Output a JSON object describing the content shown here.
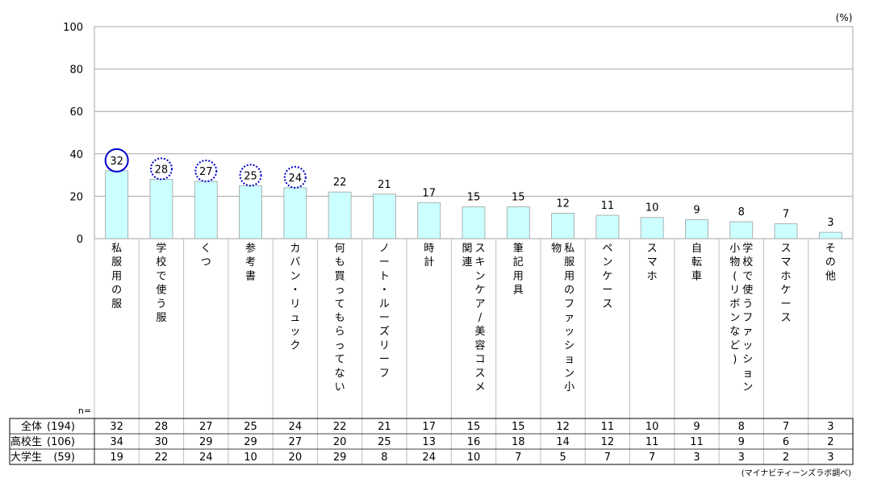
{
  "chart_data": {
    "type": "bar",
    "unit_label": "(%)",
    "ylim": [
      0,
      100
    ],
    "yticks": [
      0,
      20,
      40,
      60,
      80,
      100
    ],
    "grid": true,
    "categories": [
      "私服用の服",
      "学校で使う服",
      "くつ",
      "参考書",
      "カバン・リュック",
      "何も買ってもらってない",
      "ノート・ルーズリーフ",
      "時計",
      "スキンケア/美容コスメ関連",
      "筆記用具",
      "私服用のファッション小物",
      "ペンケース",
      "スマホ",
      "自転車",
      "学校で使うファッション小物(リボンなど)",
      "スマホケース",
      "その他"
    ],
    "category_columns": [
      [
        "私服用の服"
      ],
      [
        "学校で使う服"
      ],
      [
        "くつ"
      ],
      [
        "参考書"
      ],
      [
        "カバン・リュック"
      ],
      [
        "何も買ってもらってない"
      ],
      [
        "ノート・ルーズリーフ"
      ],
      [
        "時計"
      ],
      [
        "スキンケア/美容コスメ",
        "関連"
      ],
      [
        "筆記用具"
      ],
      [
        "私服用のファッション小",
        "物"
      ],
      [
        "ペンケース"
      ],
      [
        "スマホ"
      ],
      [
        "自転車"
      ],
      [
        "学校で使うファッション",
        "小物(リボンなど)"
      ],
      [
        "スマホケース"
      ],
      [
        "その他"
      ]
    ],
    "values": [
      32,
      28,
      27,
      25,
      24,
      22,
      21,
      17,
      15,
      15,
      12,
      11,
      10,
      9,
      8,
      7,
      3
    ],
    "highlight": {
      "solid": [
        0
      ],
      "dotted": [
        1,
        2,
        3,
        4
      ],
      "color": "#0000cc"
    },
    "bar_color": "#ccffff",
    "table": {
      "n_label": "n=",
      "rows": [
        {
          "label": "全体",
          "n": "(194)",
          "values": [
            "32",
            "28",
            "27",
            "25",
            "24",
            "22",
            "21",
            "17",
            "15",
            "15",
            "12",
            "11",
            "10",
            "9",
            "8",
            "7",
            "3"
          ]
        },
        {
          "label": "高校生",
          "n": "(106)",
          "values": [
            "34",
            "30",
            "29",
            "29",
            "27",
            "20",
            "25",
            "13",
            "16",
            "18",
            "14",
            "12",
            "11",
            "11",
            "9",
            "6",
            "2"
          ]
        },
        {
          "label": "大学生",
          "n": "(59)",
          "values": [
            "19",
            "22",
            "24",
            "10",
            "20",
            "29",
            "8",
            "24",
            "10",
            "7",
            "5",
            "7",
            "7",
            "3",
            "3",
            "2",
            "3"
          ]
        }
      ]
    },
    "source": "(マイナビティーンズラボ調べ)"
  }
}
